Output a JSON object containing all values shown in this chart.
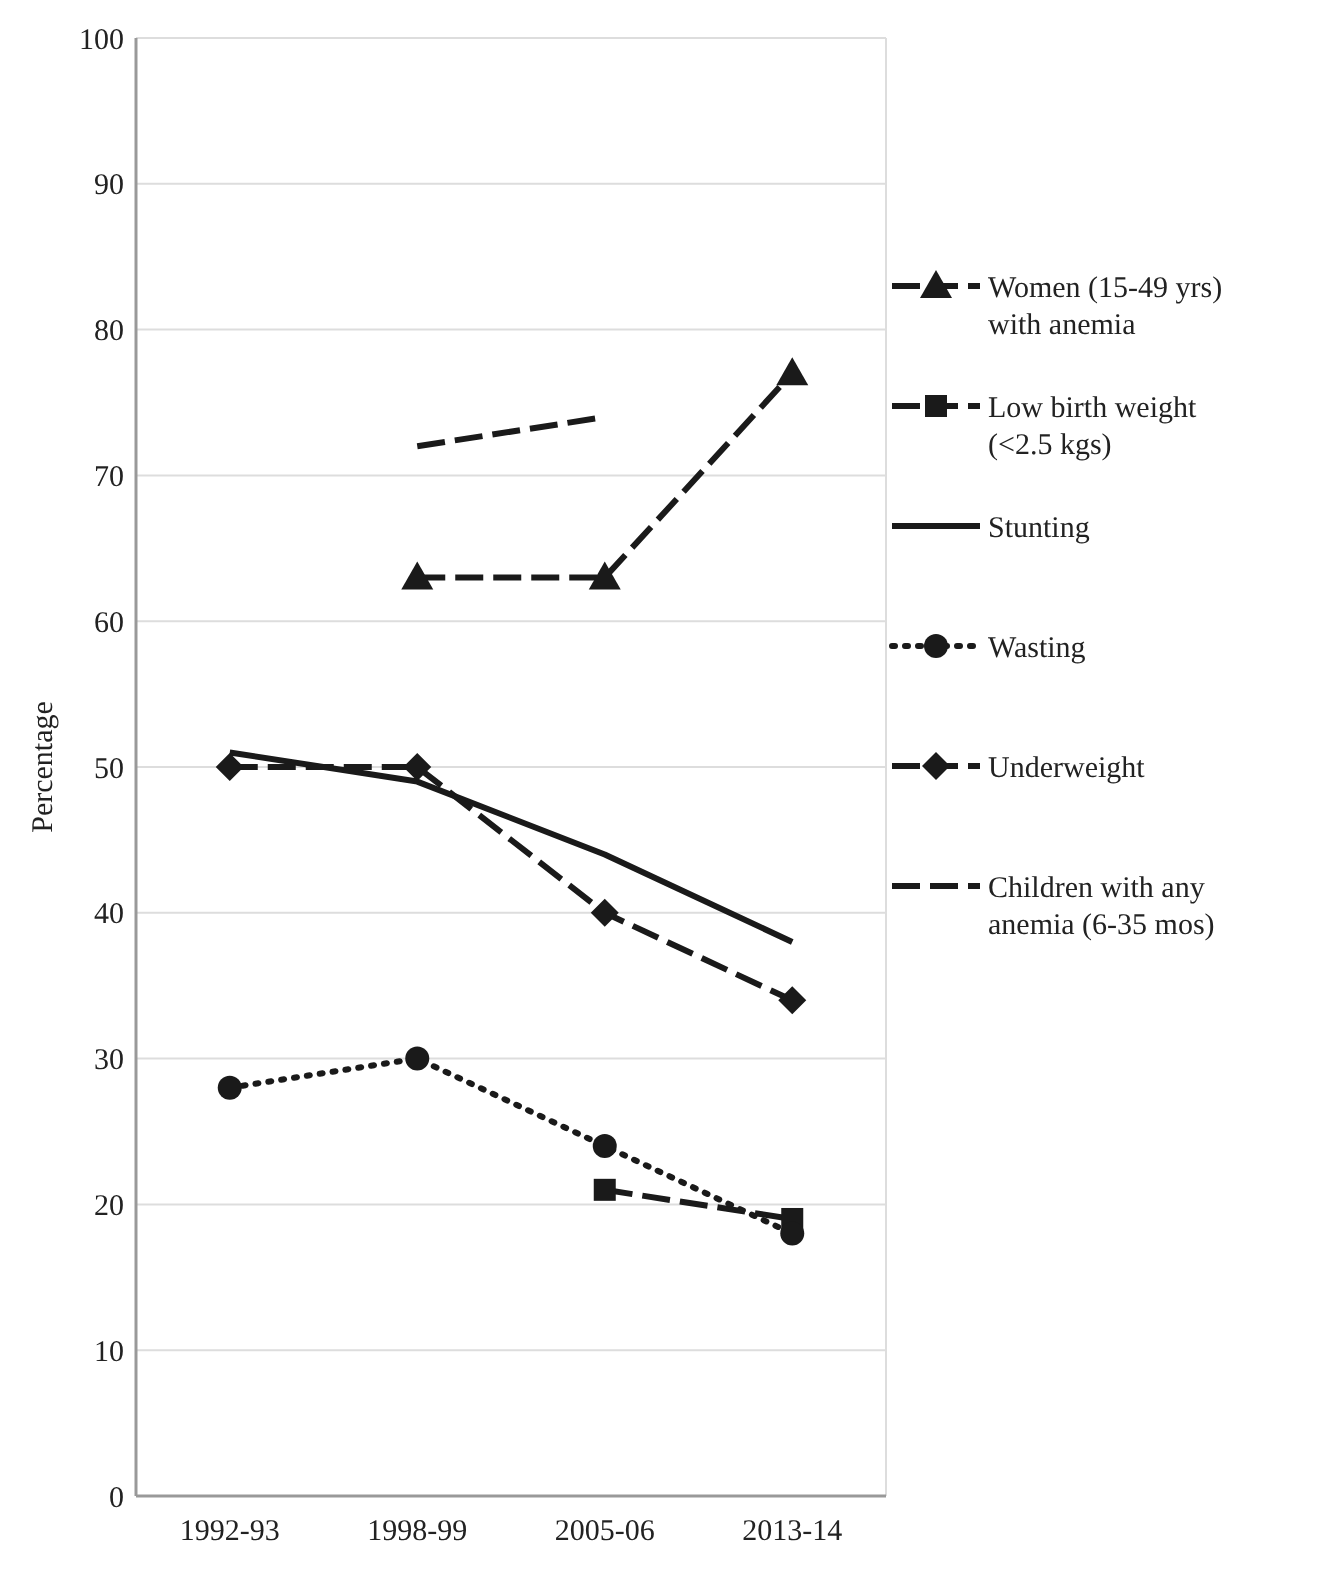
{
  "chart_data": {
    "type": "line",
    "ylabel": "Percentage",
    "categories": [
      "1992-93",
      "1998-99",
      "2005-06",
      "2013-14"
    ],
    "ylim": [
      0,
      100
    ],
    "yticks": [
      0,
      10,
      20,
      30,
      40,
      50,
      60,
      70,
      80,
      90,
      100
    ],
    "grid": "y",
    "legend": "right",
    "series": [
      {
        "name": "Women (15-49 yrs) with anemia",
        "color": "#1a1a1a",
        "marker": "triangle",
        "line_style": "dashed",
        "values": [
          null,
          63,
          63,
          77
        ]
      },
      {
        "name": "Low birth weight (<2.5 kgs)",
        "color": "#1a1a1a",
        "marker": "square",
        "line_style": "dashed",
        "values": [
          null,
          null,
          21,
          19
        ]
      },
      {
        "name": "Stunting",
        "color": "#1a1a1a",
        "marker": "none",
        "line_style": "solid",
        "values": [
          51,
          49,
          44,
          38
        ]
      },
      {
        "name": "Wasting",
        "color": "#1a1a1a",
        "marker": "circle",
        "line_style": "dotted",
        "values": [
          28,
          30,
          24,
          18
        ]
      },
      {
        "name": "Underweight",
        "color": "#1a1a1a",
        "marker": "diamond",
        "line_style": "dashed",
        "values": [
          50,
          50,
          40,
          34
        ]
      },
      {
        "name": "Children with any anemia (6-35 mos)",
        "color": "#1a1a1a",
        "marker": "none",
        "line_style": "dashed",
        "values": [
          null,
          72,
          74,
          null
        ]
      }
    ]
  }
}
